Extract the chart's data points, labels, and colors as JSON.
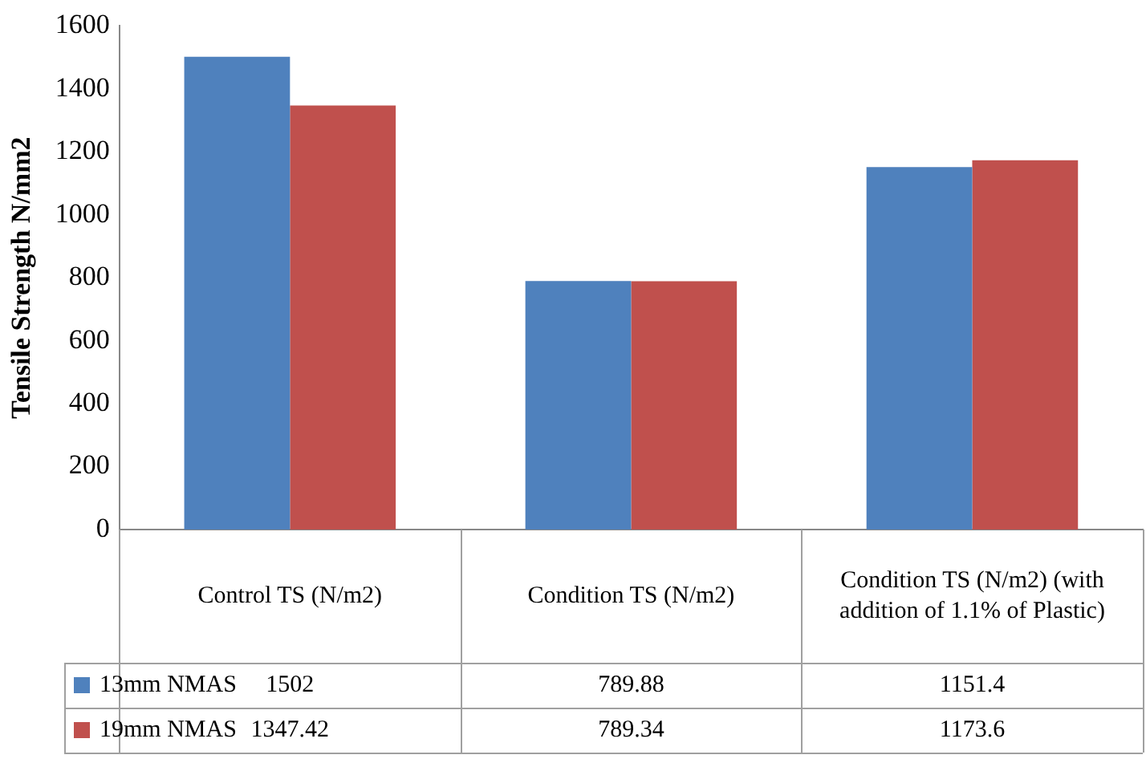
{
  "chart_data": {
    "type": "bar",
    "ylabel": "Tensile Strength N/mm2",
    "categories": [
      "Control TS (N/m2)",
      "Condition TS (N/m2)",
      "Condition TS (N/m2) (with addition of 1.1% of Plastic)"
    ],
    "series": [
      {
        "name": "13mm NMAS",
        "color": "#4f81bd",
        "values": [
          1502,
          789.88,
          1151.4
        ]
      },
      {
        "name": "19mm NMAS",
        "color": "#c0504d",
        "values": [
          1347.42,
          789.34,
          1173.6
        ]
      }
    ],
    "ylim": [
      0,
      1600
    ],
    "yticks": [
      0,
      200,
      400,
      600,
      800,
      1000,
      1200,
      1400,
      1600
    ],
    "data_labels": true,
    "legend": "bottom"
  }
}
